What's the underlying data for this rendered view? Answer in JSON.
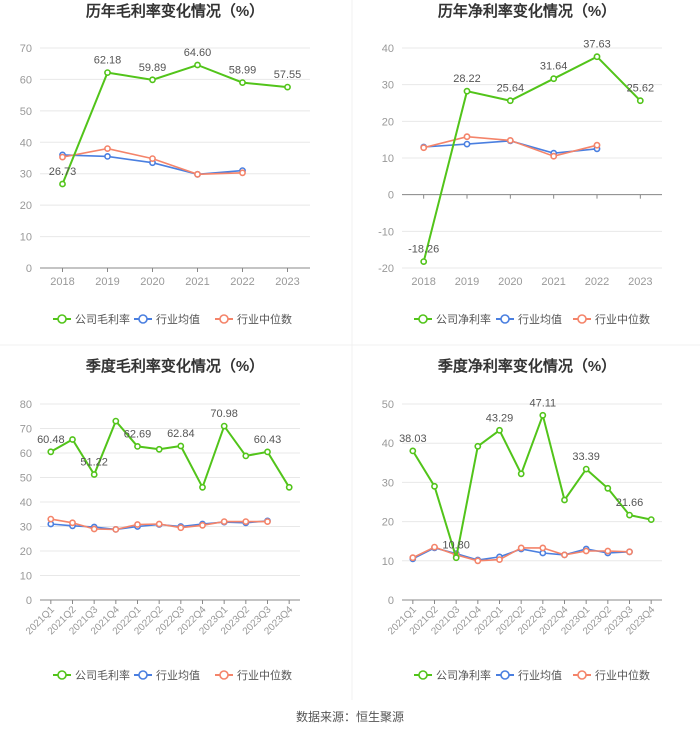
{
  "footer": "数据来源：恒生聚源",
  "colors": {
    "company": "#52c41a",
    "avg": "#4a7fe0",
    "median": "#f4846a",
    "grid": "#e8e8e8",
    "axis": "#999999",
    "text": "#999999",
    "label": "#555555",
    "title": "#333333"
  },
  "chart_data": [
    {
      "type": "line",
      "title": "历年毛利率变化情况（%）",
      "categories": [
        "2018",
        "2019",
        "2020",
        "2021",
        "2022",
        "2023"
      ],
      "ylim": [
        0,
        70
      ],
      "yticks": [
        0,
        10,
        20,
        30,
        40,
        50,
        60,
        70
      ],
      "series": [
        {
          "name": "公司毛利率",
          "role": "company",
          "values": [
            26.73,
            62.18,
            59.89,
            64.6,
            58.99,
            57.55
          ]
        },
        {
          "name": "行业均值",
          "role": "avg",
          "values": [
            36.0,
            35.5,
            33.5,
            29.8,
            31.0,
            null
          ]
        },
        {
          "name": "行业中位数",
          "role": "median",
          "values": [
            35.3,
            38.0,
            34.8,
            29.8,
            30.3,
            null
          ]
        }
      ],
      "annotations": [
        {
          "index": 0,
          "text": "26.73"
        },
        {
          "index": 1,
          "text": "62.18"
        },
        {
          "index": 2,
          "text": "59.89"
        },
        {
          "index": 3,
          "text": "64.60"
        },
        {
          "index": 4,
          "text": "58.99"
        },
        {
          "index": 5,
          "text": "57.55"
        }
      ]
    },
    {
      "type": "line",
      "title": "历年净利率变化情况（%）",
      "categories": [
        "2018",
        "2019",
        "2020",
        "2021",
        "2022",
        "2023"
      ],
      "ylim": [
        -20,
        40
      ],
      "yticks": [
        -20,
        -10,
        0,
        10,
        20,
        30,
        40
      ],
      "series": [
        {
          "name": "公司净利率",
          "role": "company",
          "values": [
            -18.26,
            28.22,
            25.64,
            31.64,
            37.63,
            25.62
          ]
        },
        {
          "name": "行业均值",
          "role": "avg",
          "values": [
            13.0,
            13.8,
            14.7,
            11.3,
            12.5,
            null
          ]
        },
        {
          "name": "行业中位数",
          "role": "median",
          "values": [
            12.8,
            15.8,
            14.8,
            10.5,
            13.5,
            null
          ]
        }
      ],
      "annotations": [
        {
          "index": 0,
          "text": "-18.26"
        },
        {
          "index": 1,
          "text": "28.22"
        },
        {
          "index": 2,
          "text": "25.64"
        },
        {
          "index": 3,
          "text": "31.64"
        },
        {
          "index": 4,
          "text": "37.63"
        },
        {
          "index": 5,
          "text": "25.62"
        }
      ]
    },
    {
      "type": "line",
      "title": "季度毛利率变化情况（%）",
      "categories": [
        "2021Q1",
        "2021Q2",
        "2021Q3",
        "2021Q4",
        "2022Q1",
        "2022Q2",
        "2022Q3",
        "2022Q4",
        "2023Q1",
        "2023Q2",
        "2023Q3",
        "2023Q4"
      ],
      "ylim": [
        0,
        80
      ],
      "yticks": [
        0,
        10,
        20,
        30,
        40,
        50,
        60,
        70,
        80
      ],
      "series": [
        {
          "name": "公司毛利率",
          "role": "company",
          "values": [
            60.48,
            65.5,
            51.22,
            73.0,
            62.69,
            61.5,
            62.84,
            46.0,
            70.98,
            58.8,
            60.43,
            46.0
          ]
        },
        {
          "name": "行业均值",
          "role": "avg",
          "values": [
            31.0,
            30.3,
            29.8,
            28.8,
            30.0,
            30.8,
            30.0,
            31.0,
            31.8,
            31.5,
            32.3,
            null
          ]
        },
        {
          "name": "行业中位数",
          "role": "median",
          "values": [
            33.0,
            31.5,
            29.0,
            28.8,
            30.8,
            31.0,
            29.5,
            30.5,
            32.0,
            32.0,
            32.0,
            null
          ]
        }
      ],
      "annotations": [
        {
          "index": 0,
          "text": "60.48"
        },
        {
          "index": 2,
          "text": "51.22"
        },
        {
          "index": 4,
          "text": "62.69"
        },
        {
          "index": 6,
          "text": "62.84"
        },
        {
          "index": 8,
          "text": "70.98"
        },
        {
          "index": 10,
          "text": "60.43"
        }
      ]
    },
    {
      "type": "line",
      "title": "季度净利率变化情况（%）",
      "categories": [
        "2021Q1",
        "2021Q2",
        "2021Q3",
        "2021Q4",
        "2022Q1",
        "2022Q2",
        "2022Q3",
        "2022Q4",
        "2023Q1",
        "2023Q2",
        "2023Q3",
        "2023Q4"
      ],
      "ylim": [
        0,
        50
      ],
      "yticks": [
        0,
        10,
        20,
        30,
        40,
        50
      ],
      "series": [
        {
          "name": "公司净利率",
          "role": "company",
          "values": [
            38.03,
            29.0,
            10.8,
            39.2,
            43.29,
            32.2,
            47.11,
            25.5,
            33.39,
            28.5,
            21.66,
            20.5
          ]
        },
        {
          "name": "行业均值",
          "role": "avg",
          "values": [
            10.5,
            13.3,
            11.8,
            10.2,
            11.0,
            13.0,
            12.0,
            11.5,
            13.0,
            12.0,
            12.3,
            null
          ]
        },
        {
          "name": "行业中位数",
          "role": "median",
          "values": [
            10.8,
            13.5,
            11.5,
            10.0,
            10.3,
            13.3,
            13.3,
            11.5,
            12.5,
            12.5,
            12.3,
            null
          ]
        }
      ],
      "annotations": [
        {
          "index": 0,
          "text": "38.03"
        },
        {
          "index": 2,
          "text": "10.80"
        },
        {
          "index": 4,
          "text": "43.29"
        },
        {
          "index": 6,
          "text": "47.11"
        },
        {
          "index": 8,
          "text": "33.39"
        },
        {
          "index": 10,
          "text": "21.66"
        }
      ]
    }
  ]
}
